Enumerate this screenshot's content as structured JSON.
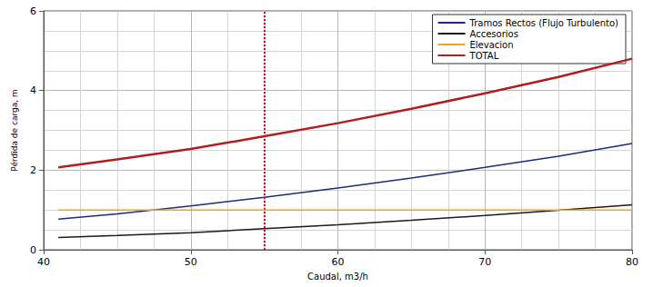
{
  "chart_data": {
    "type": "line",
    "x_label": "Caudal, m3/h",
    "y_label": "Pérdida de carga, m",
    "x": [
      41,
      45,
      50,
      55,
      60,
      65,
      70,
      75,
      80
    ],
    "series": [
      {
        "name": "Tramos Rectos (Flujo Turbulento)",
        "color": "#1f2a7a",
        "values": [
          0.77,
          0.9,
          1.1,
          1.32,
          1.55,
          1.8,
          2.07,
          2.35,
          2.67
        ]
      },
      {
        "name": "Accesorios",
        "color": "#1a1a1a",
        "values": [
          0.31,
          0.36,
          0.43,
          0.53,
          0.63,
          0.74,
          0.86,
          0.99,
          1.13
        ]
      },
      {
        "name": "Elevacion",
        "color": "#f5a21b",
        "values": [
          1.0,
          1.0,
          1.0,
          1.0,
          1.0,
          1.0,
          1.0,
          1.0,
          1.0
        ]
      },
      {
        "name": "TOTAL",
        "color": "#b01e1e",
        "values": [
          2.07,
          2.27,
          2.53,
          2.85,
          3.18,
          3.54,
          3.93,
          4.34,
          4.8
        ]
      }
    ],
    "vline": 55,
    "vline_color": "#d01010",
    "xlim": [
      40,
      80
    ],
    "xticks": [
      40,
      50,
      60,
      70,
      80
    ],
    "ylim": [
      0,
      6
    ],
    "yticks": [
      0,
      2,
      4,
      6
    ],
    "grid": true,
    "legend": "upper right"
  }
}
